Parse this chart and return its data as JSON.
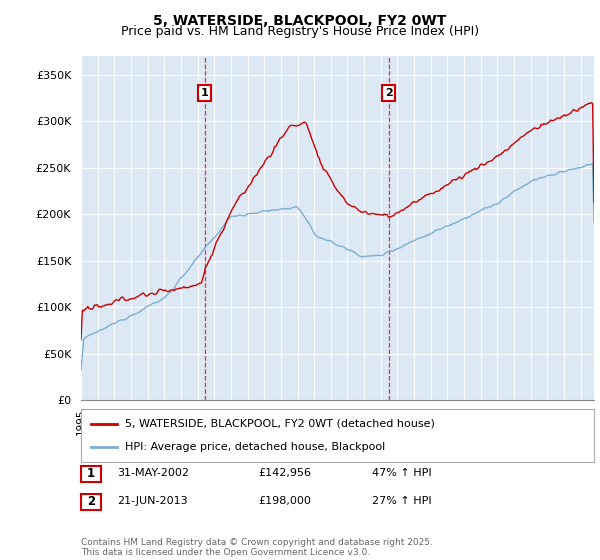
{
  "title": "5, WATERSIDE, BLACKPOOL, FY2 0WT",
  "subtitle": "Price paid vs. HM Land Registry's House Price Index (HPI)",
  "ylabel_ticks": [
    "£0",
    "£50K",
    "£100K",
    "£150K",
    "£200K",
    "£250K",
    "£300K",
    "£350K"
  ],
  "ytick_values": [
    0,
    50000,
    100000,
    150000,
    200000,
    250000,
    300000,
    350000
  ],
  "ylim": [
    0,
    370000
  ],
  "xlim_start": 1995.0,
  "xlim_end": 2025.8,
  "sale1_x": 2002.416,
  "sale1_y": 142956,
  "sale1_label": "1",
  "sale2_x": 2013.47,
  "sale2_y": 198000,
  "sale2_label": "2",
  "legend_line1": "5, WATERSIDE, BLACKPOOL, FY2 0WT (detached house)",
  "legend_line2": "HPI: Average price, detached house, Blackpool",
  "table_row1": [
    "1",
    "31-MAY-2002",
    "£142,956",
    "47% ↑ HPI"
  ],
  "table_row2": [
    "2",
    "21-JUN-2013",
    "£198,000",
    "27% ↑ HPI"
  ],
  "footer": "Contains HM Land Registry data © Crown copyright and database right 2025.\nThis data is licensed under the Open Government Licence v3.0.",
  "red_color": "#cc0000",
  "blue_color": "#7aafd4",
  "bg_plot": "#dde8f5",
  "grid_color": "#ffffff",
  "title_fontsize": 10,
  "subtitle_fontsize": 9,
  "tick_fontsize": 8
}
